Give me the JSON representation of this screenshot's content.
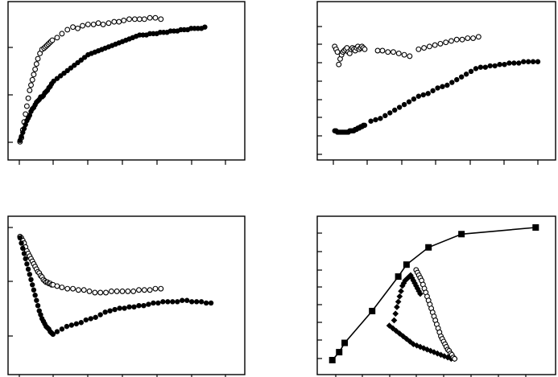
{
  "chart_data": [
    {
      "type": "scatter",
      "grid": false,
      "xlim": [
        0,
        300
      ],
      "ylim": [
        0,
        100
      ],
      "series": [
        {
          "marker": "open-circle",
          "x": [
            1,
            3,
            5,
            7,
            9,
            11,
            13,
            15,
            17,
            19,
            21,
            23,
            25,
            27,
            30,
            33,
            36,
            38,
            40,
            42,
            44,
            46,
            48,
            55,
            62,
            70,
            78,
            85,
            92,
            100,
            108,
            115,
            122,
            130,
            138,
            145,
            152,
            160,
            168,
            175,
            182,
            190,
            198,
            206
          ],
          "y": [
            1,
            4,
            10,
            16,
            22,
            28,
            34,
            40,
            44,
            48,
            52,
            56,
            60,
            64,
            68,
            71,
            72,
            73,
            74,
            75,
            76,
            77,
            78,
            80,
            83,
            86,
            88,
            87,
            89,
            90,
            90,
            91,
            90,
            91,
            92,
            92,
            93,
            94,
            94,
            94,
            94,
            95,
            95,
            94
          ]
        },
        {
          "marker": "filled-circle",
          "x": [
            1,
            3,
            5,
            7,
            9,
            11,
            13,
            15,
            17,
            19,
            21,
            23,
            25,
            27,
            29,
            31,
            33,
            35,
            37,
            39,
            41,
            43,
            45,
            47,
            50,
            55,
            60,
            65,
            70,
            75,
            80,
            85,
            90,
            95,
            100,
            105,
            110,
            115,
            120,
            125,
            130,
            135,
            140,
            145,
            150,
            155,
            160,
            165,
            170,
            175,
            180,
            185,
            190,
            195,
            200,
            205,
            210,
            215,
            220,
            225,
            230,
            235,
            240,
            245,
            250,
            255,
            260,
            265,
            270
          ],
          "y": [
            2,
            5,
            8,
            11,
            14,
            17,
            19,
            21,
            24,
            26,
            27,
            29,
            31,
            32,
            33,
            35,
            35,
            36,
            38,
            39,
            40,
            42,
            43,
            45,
            47,
            49,
            51,
            53,
            55,
            57,
            59,
            61,
            63,
            65,
            67,
            68,
            69,
            70,
            71,
            72,
            73,
            74,
            75,
            76,
            77,
            78,
            79,
            80,
            81,
            82,
            82,
            82,
            83,
            83,
            83,
            84,
            84,
            84,
            85,
            85,
            85,
            86,
            86,
            86,
            87,
            87,
            87,
            87,
            88
          ]
        }
      ]
    },
    {
      "type": "scatter",
      "grid": false,
      "xlim": [
        0,
        300
      ],
      "ylim": [
        0,
        100
      ],
      "series": [
        {
          "marker": "open-circle",
          "x": [
            2,
            4,
            6,
            8,
            10,
            12,
            14,
            16,
            18,
            20,
            22,
            24,
            26,
            28,
            30,
            32,
            34,
            36,
            38,
            40,
            42,
            44,
            46,
            65,
            72,
            80,
            88,
            96,
            104,
            112,
            125,
            133,
            141,
            149,
            157,
            165,
            173,
            181,
            189,
            197,
            205,
            213
          ],
          "y": [
            78,
            76,
            74,
            65,
            69,
            72,
            74,
            75,
            76,
            77,
            74,
            73,
            76,
            77,
            76,
            75,
            77,
            78,
            76,
            77,
            78,
            77,
            76,
            75,
            75,
            74,
            74,
            73,
            72,
            71,
            76,
            77,
            78,
            79,
            80,
            81,
            82,
            83,
            83,
            84,
            84,
            85
          ]
        },
        {
          "marker": "filled-circle",
          "x": [
            2,
            4,
            6,
            8,
            10,
            12,
            14,
            16,
            18,
            20,
            22,
            24,
            26,
            28,
            30,
            32,
            34,
            36,
            38,
            40,
            42,
            44,
            46,
            55,
            62,
            69,
            76,
            83,
            90,
            97,
            104,
            111,
            118,
            125,
            132,
            139,
            146,
            153,
            160,
            167,
            174,
            181,
            188,
            195,
            202,
            209,
            216,
            223,
            230,
            237,
            244,
            251,
            258,
            265,
            272,
            279,
            286,
            293,
            300
          ],
          "y": [
            17,
            17,
            16,
            16,
            16,
            16,
            16,
            16,
            16,
            16,
            16,
            17,
            17,
            17,
            17,
            18,
            18,
            19,
            19,
            20,
            20,
            21,
            21,
            24,
            25,
            26,
            28,
            30,
            32,
            34,
            36,
            38,
            40,
            42,
            43,
            44,
            46,
            48,
            49,
            50,
            52,
            54,
            56,
            58,
            60,
            62,
            63,
            63,
            64,
            64,
            65,
            65,
            66,
            66,
            66,
            67,
            67,
            67,
            67
          ]
        }
      ]
    },
    {
      "type": "scatter",
      "grid": false,
      "xlim": [
        0,
        300
      ],
      "ylim": [
        0,
        100
      ],
      "series": [
        {
          "marker": "open-circle",
          "x": [
            1,
            3,
            5,
            7,
            9,
            11,
            13,
            15,
            17,
            19,
            21,
            23,
            25,
            27,
            29,
            31,
            33,
            35,
            37,
            39,
            41,
            43,
            45,
            47,
            49,
            55,
            62,
            70,
            78,
            86,
            94,
            102,
            110,
            118,
            126,
            134,
            142,
            150,
            158,
            166,
            174,
            182,
            190,
            198,
            206
          ],
          "y": [
            93,
            92,
            90,
            88,
            85,
            82,
            80,
            78,
            76,
            74,
            72,
            70,
            68,
            66,
            65,
            63,
            62,
            60,
            59,
            58,
            58,
            57,
            57,
            56,
            56,
            55,
            54,
            53,
            53,
            52,
            52,
            51,
            50,
            50,
            50,
            51,
            51,
            51,
            51,
            51,
            52,
            52,
            52,
            53,
            53
          ]
        },
        {
          "marker": "filled-circle",
          "x": [
            1,
            3,
            5,
            7,
            9,
            11,
            13,
            15,
            17,
            19,
            21,
            23,
            25,
            27,
            29,
            31,
            33,
            35,
            37,
            39,
            41,
            43,
            45,
            47,
            49,
            55,
            62,
            69,
            76,
            83,
            90,
            97,
            104,
            111,
            118,
            125,
            132,
            139,
            146,
            153,
            160,
            167,
            174,
            181,
            188,
            195,
            202,
            209,
            216,
            223,
            230,
            237,
            244,
            251,
            258,
            265,
            272,
            279
          ],
          "y": [
            92,
            88,
            84,
            80,
            76,
            72,
            68,
            64,
            60,
            56,
            52,
            48,
            44,
            40,
            36,
            33,
            30,
            28,
            26,
            24,
            23,
            22,
            20,
            19,
            18,
            20,
            22,
            24,
            25,
            26,
            27,
            29,
            30,
            31,
            33,
            35,
            36,
            37,
            38,
            38,
            39,
            39,
            40,
            40,
            41,
            42,
            42,
            43,
            43,
            43,
            43,
            44,
            44,
            43,
            43,
            43,
            42,
            42
          ]
        }
      ]
    },
    {
      "type": "line",
      "grid": false,
      "xlim": [
        0,
        300
      ],
      "ylim": [
        0,
        100
      ],
      "series": [
        {
          "marker": "filled-square",
          "line": true,
          "x": [
            2,
            12,
            20,
            60,
            98,
            110,
            142,
            190,
            298
          ],
          "y": [
            0,
            6,
            13,
            37,
            63,
            72,
            85,
            95,
            100
          ]
        },
        {
          "marker": "filled-diamond",
          "line": false,
          "x": [
            92,
            94,
            96,
            98,
            100,
            102,
            104,
            106,
            108,
            110,
            112,
            114,
            116,
            118,
            120,
            122,
            124,
            126,
            128,
            130,
            85,
            90,
            95,
            100,
            105,
            110,
            115,
            120,
            125,
            130,
            135,
            140,
            145,
            150,
            155,
            160,
            165,
            170,
            175,
            180
          ],
          "y": [
            30,
            35,
            40,
            44,
            48,
            52,
            56,
            58,
            60,
            61,
            62,
            63,
            64,
            62,
            60,
            58,
            56,
            54,
            52,
            50,
            26,
            24,
            22,
            20,
            18,
            16,
            14,
            12,
            11,
            10,
            9,
            8,
            7,
            6,
            5,
            4,
            3,
            2,
            1,
            1
          ]
        },
        {
          "marker": "open-circle",
          "line": false,
          "x": [
            124,
            126,
            128,
            130,
            132,
            134,
            136,
            138,
            140,
            142,
            144,
            146,
            148,
            150,
            152,
            154,
            156,
            158,
            160,
            162,
            164,
            166,
            168,
            170,
            172,
            174,
            176,
            178,
            180
          ],
          "y": [
            68,
            66,
            64,
            62,
            60,
            57,
            54,
            51,
            48,
            45,
            42,
            39,
            36,
            33,
            30,
            27,
            24,
            21,
            18,
            16,
            14,
            12,
            10,
            8,
            7,
            5,
            4,
            2,
            1
          ]
        }
      ]
    }
  ]
}
